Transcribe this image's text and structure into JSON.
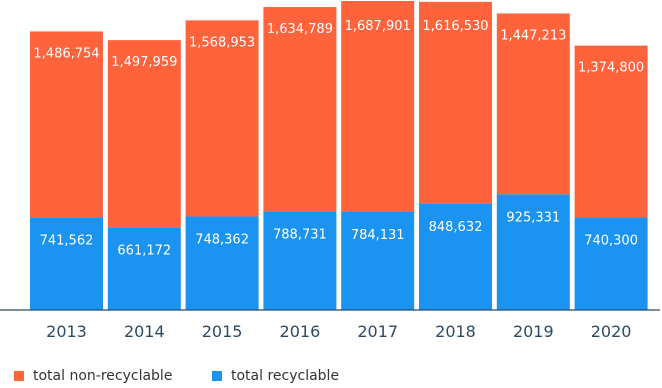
{
  "chart_data": {
    "type": "bar",
    "stacked": true,
    "categories": [
      "2013",
      "2014",
      "2015",
      "2016",
      "2017",
      "2018",
      "2019",
      "2020"
    ],
    "series": [
      {
        "name": "total recyclable",
        "color": "#1a94f0",
        "values": [
          741562,
          661172,
          748362,
          788731,
          784131,
          848632,
          925331,
          740300
        ],
        "labels": [
          "741,562",
          "661,172",
          "748,362",
          "788,731",
          "784,131",
          "848,632",
          "925,331",
          "740,300"
        ]
      },
      {
        "name": "total non-recyclable",
        "color": "#fe633c",
        "values": [
          1486754,
          1497959,
          1568953,
          1634789,
          1687901,
          1616530,
          1447213,
          1374800
        ],
        "labels": [
          "1,486,754",
          "1,497,959",
          "1,568,953",
          "1,634,789",
          "1,687,901",
          "1,616,530",
          "1,447,213",
          "1,374,800"
        ]
      }
    ],
    "title": "",
    "xlabel": "",
    "ylabel": "",
    "grid": false,
    "legend_position": "bottom-left"
  },
  "legend": {
    "items": [
      {
        "label": "total non-recyclable",
        "color": "#fe633c"
      },
      {
        "label": "total recyclable",
        "color": "#1a94f0"
      }
    ]
  }
}
